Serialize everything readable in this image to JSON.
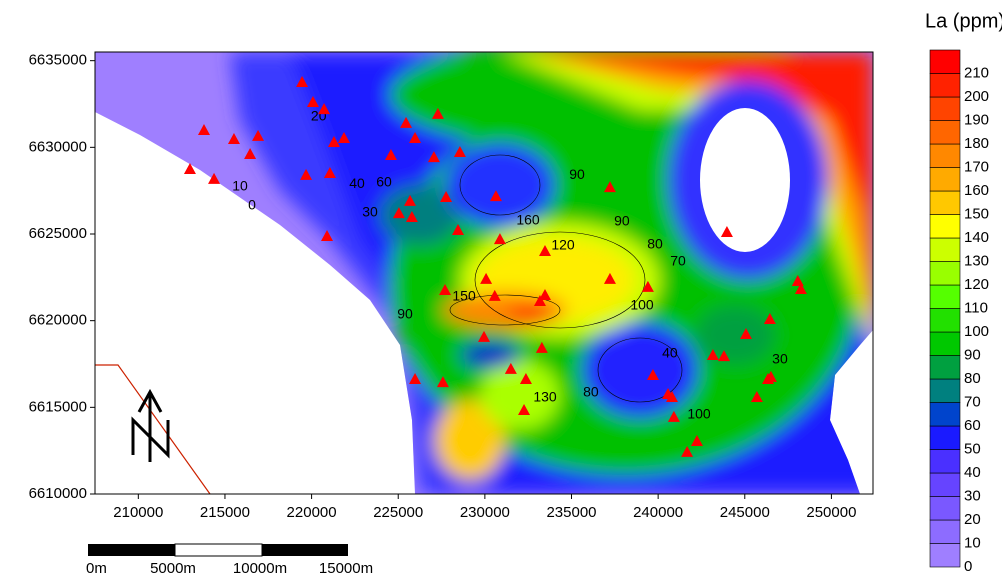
{
  "map": {
    "type": "contour",
    "xlim": [
      207500,
      252400
    ],
    "ylim": [
      6610000,
      6635500
    ],
    "xticks": [
      210000,
      215000,
      220000,
      225000,
      230000,
      235000,
      240000,
      245000,
      250000
    ],
    "yticks": [
      6610000,
      6615000,
      6620000,
      6625000,
      6630000,
      6635000
    ],
    "sample_points": {
      "color": "#ff0000",
      "x": [
        219450,
        220080,
        220720,
        213790,
        215520,
        216910,
        216450,
        212980,
        214370,
        219680,
        221060,
        221290,
        221870,
        224580,
        225450,
        225970,
        227290,
        227060,
        228560,
        225680,
        225040,
        225790,
        227760,
        230640,
        228450,
        220890,
        230870,
        233470,
        237220,
        237220,
        239410,
        243970,
        230070,
        227700,
        230570,
        233470,
        233180,
        248060,
        248240,
        246450,
        245070,
        229950,
        231500,
        233290,
        225970,
        227580,
        232370,
        239700,
        243160,
        243800,
        246340,
        246510,
        245700,
        240570,
        240800,
        240910,
        232260,
        242240,
        241670
      ],
      "y": [
        6633710,
        6632560,
        6632150,
        6630940,
        6630420,
        6630600,
        6629560,
        6628690,
        6628120,
        6628350,
        6628460,
        6630250,
        6630480,
        6629500,
        6631350,
        6630480,
        6631870,
        6629380,
        6629670,
        6626850,
        6626150,
        6625920,
        6627080,
        6627130,
        6625170,
        6624830,
        6624650,
        6623960,
        6622350,
        6627650,
        6621890,
        6625060,
        6622350,
        6621710,
        6621370,
        6621420,
        6621080,
        6622230,
        6621770,
        6620040,
        6619170,
        6619010,
        6617160,
        6618370,
        6616580,
        6616400,
        6616580,
        6616810,
        6617960,
        6617900,
        6616580,
        6616700,
        6615540,
        6615710,
        6615540,
        6614390,
        6614790,
        6613000,
        6612370
      ]
    },
    "contour_labels": {
      "values": [
        20,
        10,
        0,
        30,
        40,
        60,
        90,
        100,
        120,
        150,
        160,
        90,
        80,
        70,
        40,
        30,
        90,
        130,
        100,
        80
      ],
      "x": [
        220410,
        215870,
        216560,
        223370,
        222620,
        224180,
        225390,
        239070,
        234510,
        228800,
        232490,
        237910,
        239820,
        241150,
        240680,
        247030,
        235320,
        233470,
        242360,
        236120
      ],
      "y": [
        6631750,
        6627710,
        6626620,
        6626210,
        6627880,
        6627940,
        6620330,
        6620850,
        6624310,
        6621370,
        6625750,
        6625690,
        6624370,
        6623390,
        6618080,
        6617730,
        6628400,
        6615540,
        6614560,
        6615830
      ]
    }
  },
  "colorbar": {
    "title": "La (ppm)",
    "lim": [
      0,
      220
    ],
    "levels": [
      0,
      10,
      20,
      30,
      40,
      50,
      60,
      70,
      80,
      90,
      100,
      110,
      120,
      130,
      140,
      150,
      160,
      170,
      180,
      190,
      200,
      210
    ],
    "colors": [
      "#9f7fff",
      "#8d6cff",
      "#7a58ff",
      "#6644ff",
      "#4a30ff",
      "#1a1aff",
      "#0044cc",
      "#00807f",
      "#00a040",
      "#00c800",
      "#22e000",
      "#55ff00",
      "#99ff00",
      "#ccff00",
      "#ffff00",
      "#ffc800",
      "#ffaa00",
      "#ff8800",
      "#ff6600",
      "#ff4400",
      "#ff2200",
      "#ff0000"
    ]
  },
  "scale_bar": {
    "labels": [
      "0m",
      "5000m",
      "10000m",
      "15000m"
    ]
  }
}
